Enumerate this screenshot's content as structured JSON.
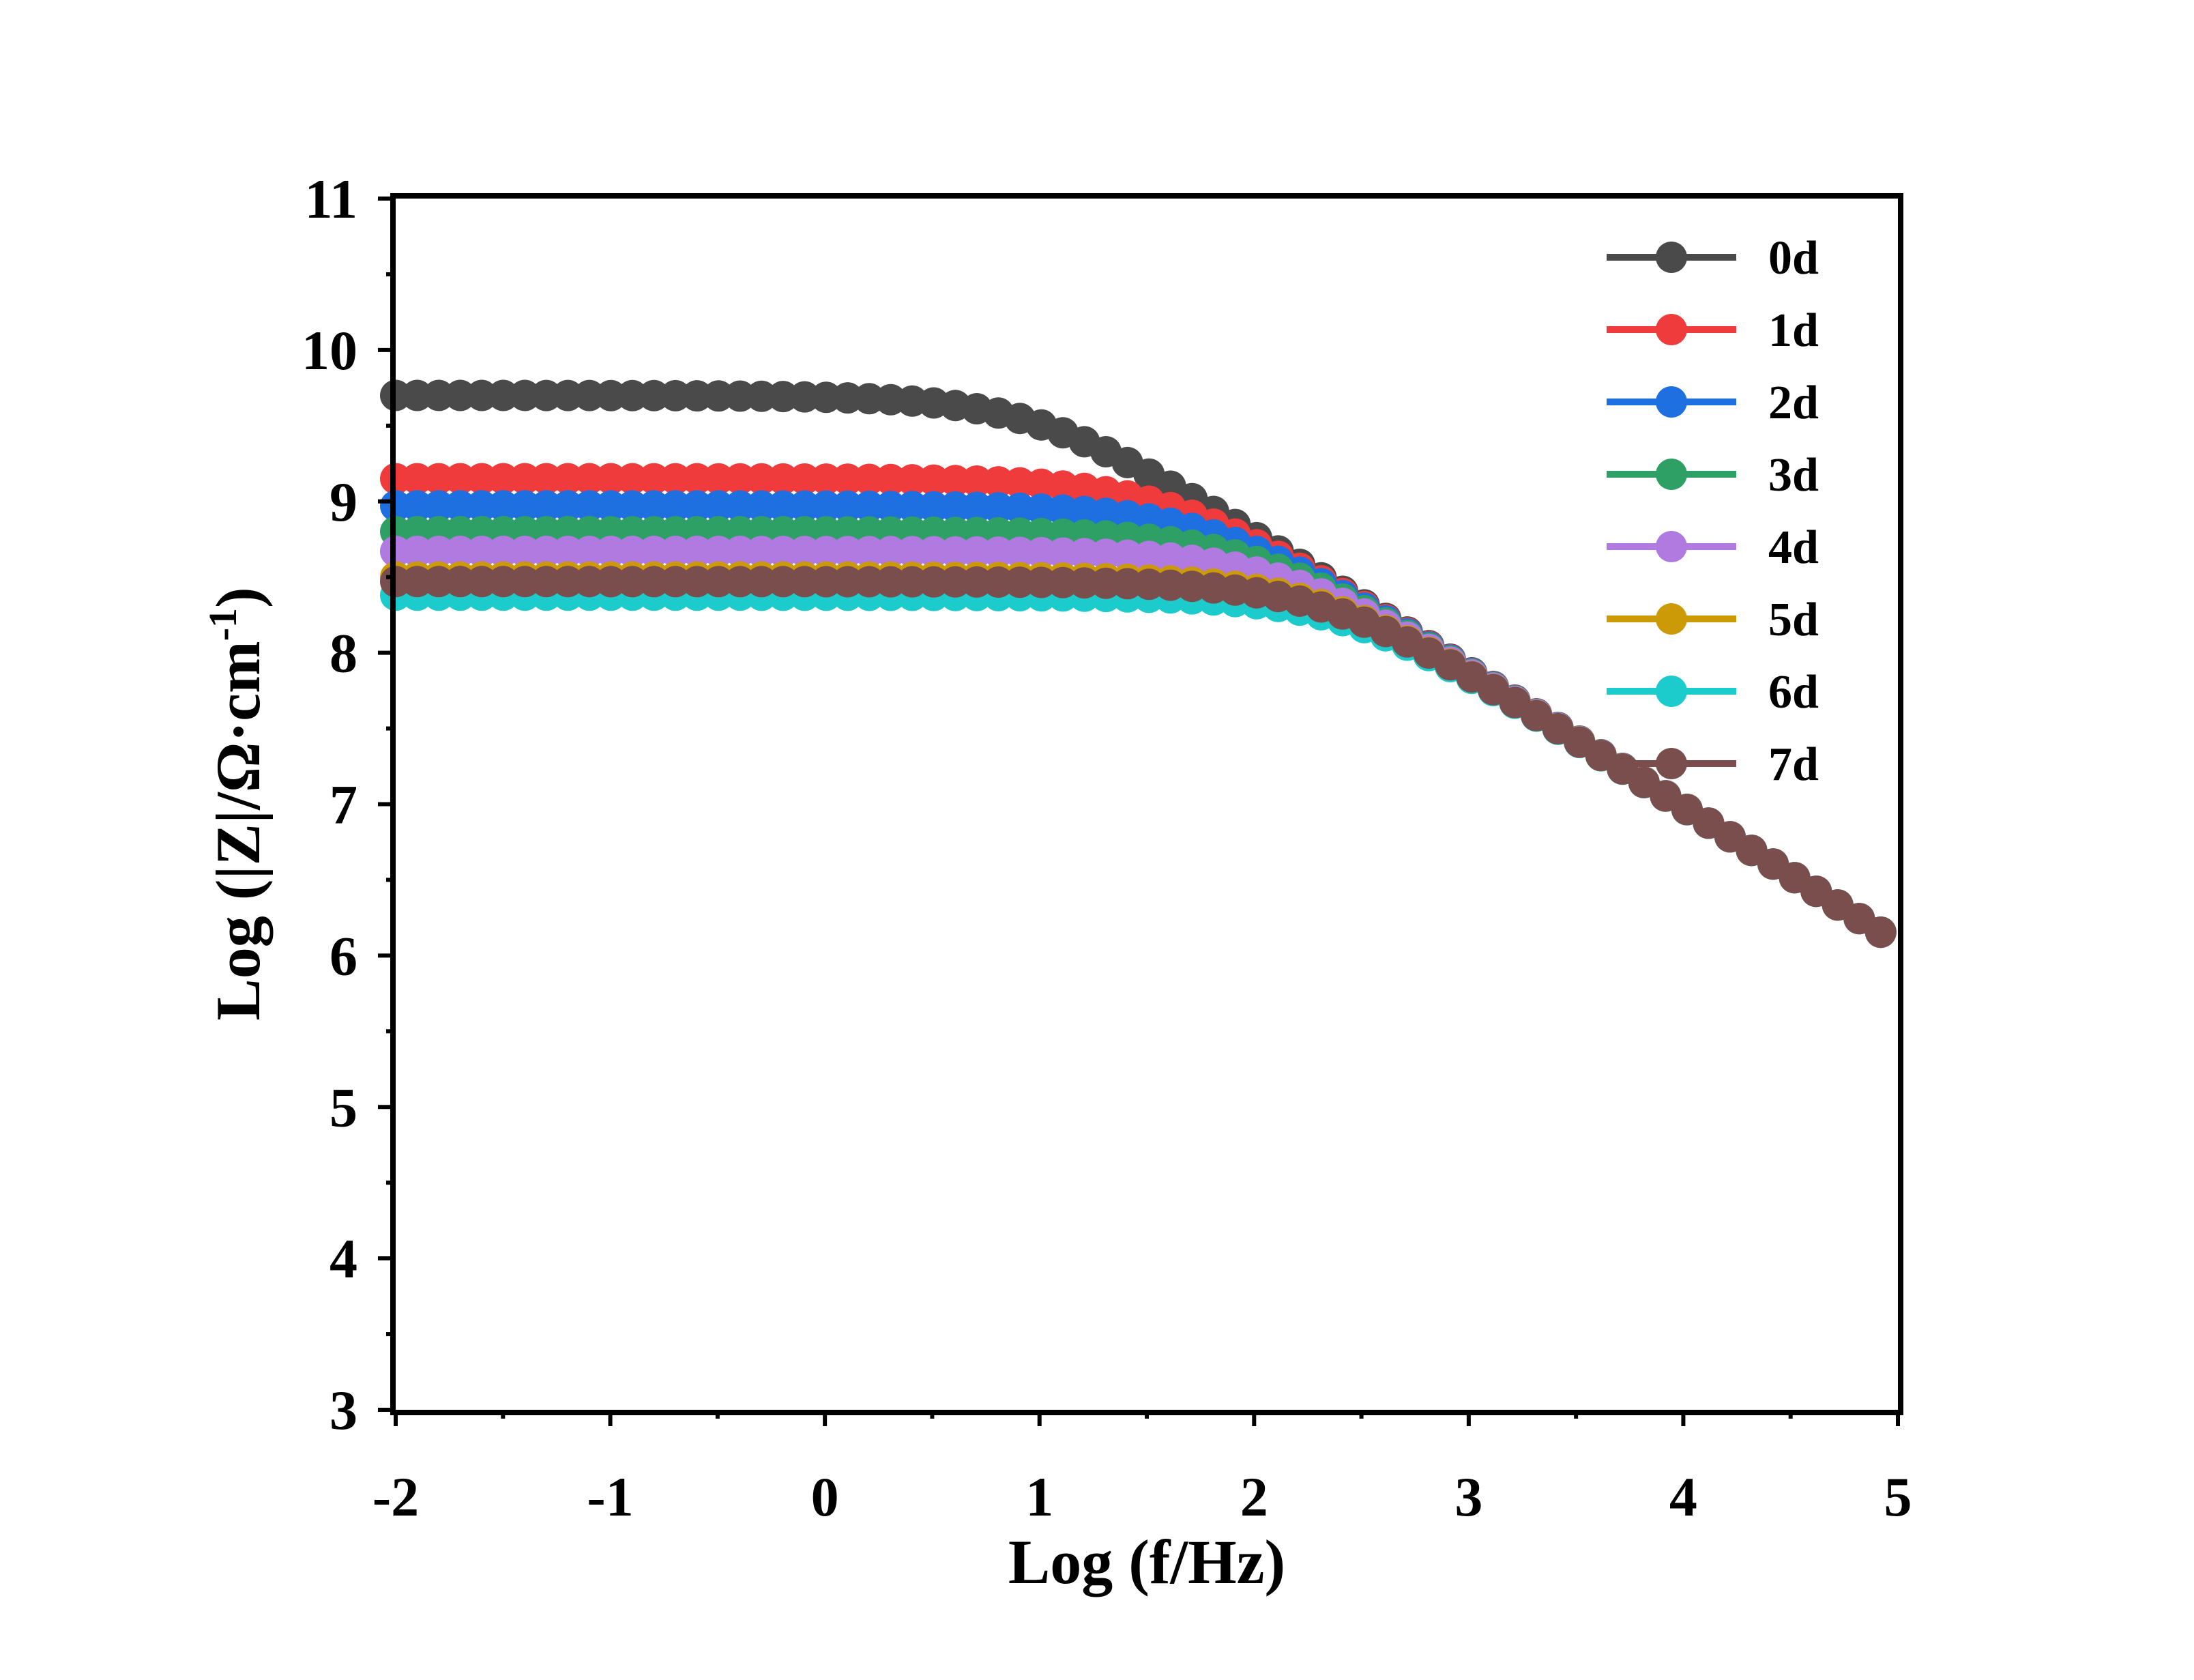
{
  "chart_data": {
    "type": "scatter",
    "title": "",
    "xlabel": "Log (f/Hz)",
    "ylabel_main": "Log (|Z|/Ω·cm",
    "ylabel_sup": "-1",
    "ylabel_tail": ")",
    "xlim": [
      -2,
      5
    ],
    "ylim": [
      3,
      11
    ],
    "xticks": [
      "-2",
      "-1",
      "0",
      "1",
      "2",
      "3",
      "4",
      "5"
    ],
    "yticks": [
      "3",
      "4",
      "5",
      "6",
      "7",
      "8",
      "9",
      "10",
      "11"
    ],
    "grid": false,
    "legend_position": "top-right",
    "curve_model": {
      "log_r": 4.3,
      "log_cdl": -11.3,
      "alpha": 0.9
    },
    "x_range": [
      -2.0,
      4.92
    ],
    "points_per_series": 70,
    "series": [
      {
        "name": "0d",
        "color": "#4a4a4a",
        "log_rct": 9.7
      },
      {
        "name": "1d",
        "color": "#ef3b3b",
        "log_rct": 9.15
      },
      {
        "name": "2d",
        "color": "#1e6fe0",
        "log_rct": 8.97
      },
      {
        "name": "3d",
        "color": "#2fa065",
        "log_rct": 8.8
      },
      {
        "name": "4d",
        "color": "#b07ae0",
        "log_rct": 8.67
      },
      {
        "name": "5d",
        "color": "#cc9a06",
        "log_rct": 8.5
      },
      {
        "name": "6d",
        "color": "#1ccbcb",
        "log_rct": 8.38
      },
      {
        "name": "7d",
        "color": "#7a4e4c",
        "log_rct": 8.47
      }
    ]
  }
}
